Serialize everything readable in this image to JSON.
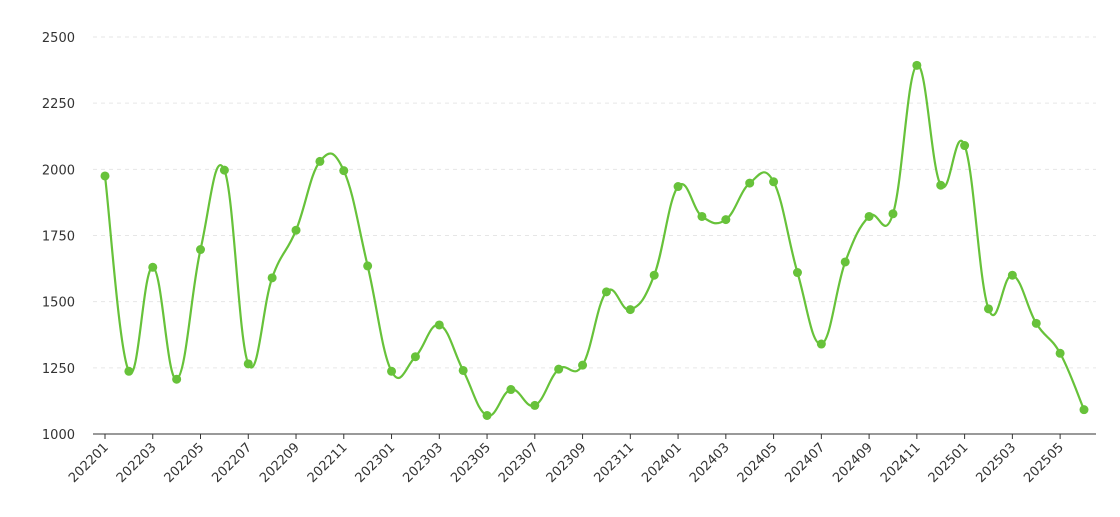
{
  "chart_data": {
    "type": "line",
    "title": "",
    "xlabel": "",
    "ylabel": "",
    "ylim": [
      1000,
      2500
    ],
    "yticks": [
      1000,
      1250,
      1500,
      1750,
      2000,
      2250,
      2500
    ],
    "grid": true,
    "legend": "none",
    "smooth": true,
    "color": "#67c23a",
    "x": [
      "202201",
      "202202",
      "202203",
      "202204",
      "202205",
      "202206",
      "202207",
      "202208",
      "202209",
      "202210",
      "202211",
      "202212",
      "202301",
      "202302",
      "202303",
      "202304",
      "202305",
      "202306",
      "202307",
      "202308",
      "202309",
      "202310",
      "202311",
      "202312",
      "202401",
      "202402",
      "202403",
      "202404",
      "202405",
      "202406",
      "202407",
      "202408",
      "202409",
      "202410",
      "202411",
      "202412",
      "202501",
      "202502",
      "202503",
      "202504",
      "202505",
      "202506"
    ],
    "xtick_labels": [
      "202201",
      "202203",
      "202205",
      "202207",
      "202209",
      "202211",
      "202301",
      "202303",
      "202305",
      "202307",
      "202309",
      "202311",
      "202401",
      "202403",
      "202405",
      "202407",
      "202409",
      "202411",
      "202501",
      "202503",
      "202505"
    ],
    "series": [
      {
        "values": [
          1975,
          1237,
          1630,
          1207,
          1697,
          1997,
          1265,
          1590,
          1770,
          2030,
          1995,
          1635,
          1237,
          1292,
          1412,
          1240,
          1070,
          1168,
          1108,
          1245,
          1260,
          1537,
          1470,
          1600,
          1935,
          1822,
          1810,
          1948,
          1953,
          1610,
          1340,
          1650,
          1822,
          1832,
          2393,
          1940,
          2090,
          1473,
          1600,
          1418,
          1305,
          1092
        ]
      }
    ]
  }
}
